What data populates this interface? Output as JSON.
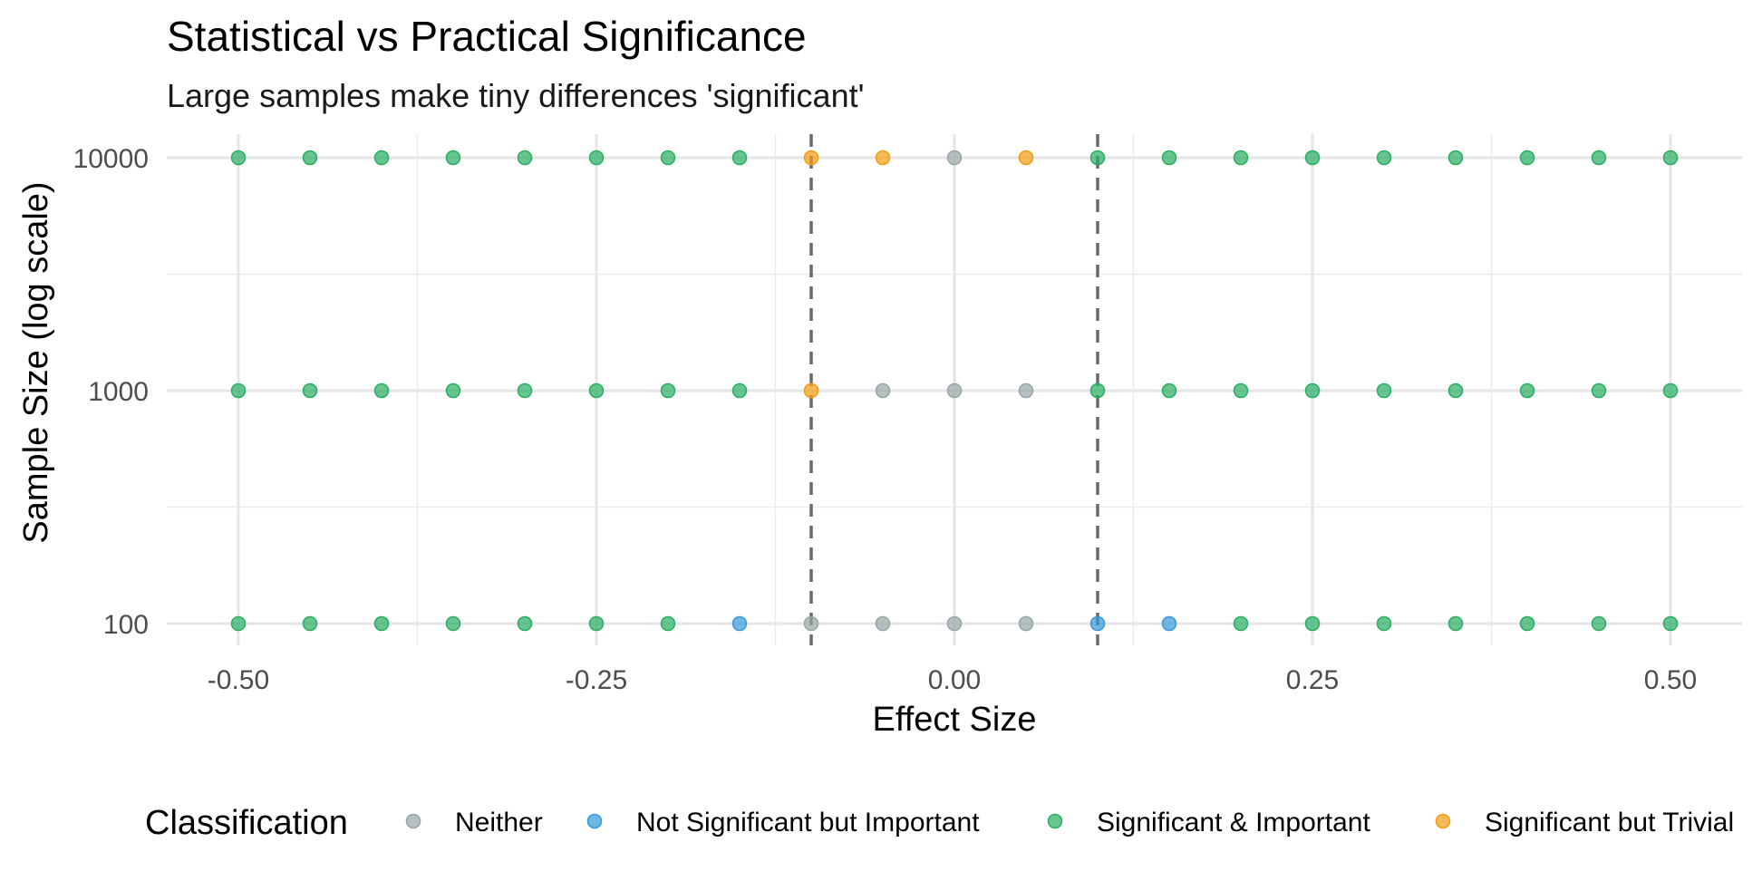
{
  "chart_data": {
    "type": "scatter",
    "title": "Statistical vs Practical Significance",
    "subtitle": "Large samples make tiny differences 'significant'",
    "xlabel": "Effect Size",
    "ylabel": "Sample Size (log scale)",
    "xlim": [
      -0.55,
      0.55
    ],
    "ylim": [
      100,
      10000
    ],
    "y_scale": "log10",
    "x_ticks": [
      -0.5,
      -0.25,
      0.0,
      0.25,
      0.5
    ],
    "x_tick_labels": [
      "-0.50",
      "-0.25",
      "0.00",
      "0.25",
      "0.50"
    ],
    "y_ticks": [
      100,
      1000,
      10000
    ],
    "y_tick_labels": [
      "100",
      "1000",
      "10000"
    ],
    "grid": true,
    "reference_lines": [
      {
        "x": -0.1,
        "style": "dashed"
      },
      {
        "x": 0.1,
        "style": "dashed"
      }
    ],
    "legend": {
      "title": "Classification",
      "position": "bottom",
      "entries": [
        {
          "name": "Neither",
          "color": "#95A5A6"
        },
        {
          "name": "Not Significant but Important",
          "color": "#3498DB"
        },
        {
          "name": "Significant & Important",
          "color": "#27AE60"
        },
        {
          "name": "Significant but Trivial",
          "color": "#F39C12"
        }
      ]
    },
    "series": [
      {
        "name": "Neither",
        "color": "#95A5A6",
        "points": [
          {
            "x": -0.1,
            "y": 100
          },
          {
            "x": -0.05,
            "y": 100
          },
          {
            "x": 0.0,
            "y": 100
          },
          {
            "x": 0.05,
            "y": 100
          },
          {
            "x": -0.05,
            "y": 1000
          },
          {
            "x": 0.0,
            "y": 1000
          },
          {
            "x": 0.05,
            "y": 1000
          },
          {
            "x": 0.0,
            "y": 10000
          }
        ]
      },
      {
        "name": "Not Significant but Important",
        "color": "#3498DB",
        "points": [
          {
            "x": -0.15,
            "y": 100
          },
          {
            "x": 0.1,
            "y": 100
          },
          {
            "x": 0.15,
            "y": 100
          }
        ]
      },
      {
        "name": "Significant & Important",
        "color": "#27AE60",
        "points": [
          {
            "x": -0.5,
            "y": 100
          },
          {
            "x": -0.45,
            "y": 100
          },
          {
            "x": -0.4,
            "y": 100
          },
          {
            "x": -0.35,
            "y": 100
          },
          {
            "x": -0.3,
            "y": 100
          },
          {
            "x": -0.25,
            "y": 100
          },
          {
            "x": -0.2,
            "y": 100
          },
          {
            "x": 0.2,
            "y": 100
          },
          {
            "x": 0.25,
            "y": 100
          },
          {
            "x": 0.3,
            "y": 100
          },
          {
            "x": 0.35,
            "y": 100
          },
          {
            "x": 0.4,
            "y": 100
          },
          {
            "x": 0.45,
            "y": 100
          },
          {
            "x": 0.5,
            "y": 100
          },
          {
            "x": -0.5,
            "y": 1000
          },
          {
            "x": -0.45,
            "y": 1000
          },
          {
            "x": -0.4,
            "y": 1000
          },
          {
            "x": -0.35,
            "y": 1000
          },
          {
            "x": -0.3,
            "y": 1000
          },
          {
            "x": -0.25,
            "y": 1000
          },
          {
            "x": -0.2,
            "y": 1000
          },
          {
            "x": -0.15,
            "y": 1000
          },
          {
            "x": 0.1,
            "y": 1000
          },
          {
            "x": 0.15,
            "y": 1000
          },
          {
            "x": 0.2,
            "y": 1000
          },
          {
            "x": 0.25,
            "y": 1000
          },
          {
            "x": 0.3,
            "y": 1000
          },
          {
            "x": 0.35,
            "y": 1000
          },
          {
            "x": 0.4,
            "y": 1000
          },
          {
            "x": 0.45,
            "y": 1000
          },
          {
            "x": 0.5,
            "y": 1000
          },
          {
            "x": -0.5,
            "y": 10000
          },
          {
            "x": -0.45,
            "y": 10000
          },
          {
            "x": -0.4,
            "y": 10000
          },
          {
            "x": -0.35,
            "y": 10000
          },
          {
            "x": -0.3,
            "y": 10000
          },
          {
            "x": -0.25,
            "y": 10000
          },
          {
            "x": -0.2,
            "y": 10000
          },
          {
            "x": -0.15,
            "y": 10000
          },
          {
            "x": 0.1,
            "y": 10000
          },
          {
            "x": 0.15,
            "y": 10000
          },
          {
            "x": 0.2,
            "y": 10000
          },
          {
            "x": 0.25,
            "y": 10000
          },
          {
            "x": 0.3,
            "y": 10000
          },
          {
            "x": 0.35,
            "y": 10000
          },
          {
            "x": 0.4,
            "y": 10000
          },
          {
            "x": 0.45,
            "y": 10000
          },
          {
            "x": 0.5,
            "y": 10000
          }
        ]
      },
      {
        "name": "Significant but Trivial",
        "color": "#F39C12",
        "points": [
          {
            "x": -0.1,
            "y": 1000
          },
          {
            "x": -0.1,
            "y": 10000
          },
          {
            "x": -0.05,
            "y": 10000
          },
          {
            "x": 0.05,
            "y": 10000
          }
        ]
      }
    ]
  }
}
